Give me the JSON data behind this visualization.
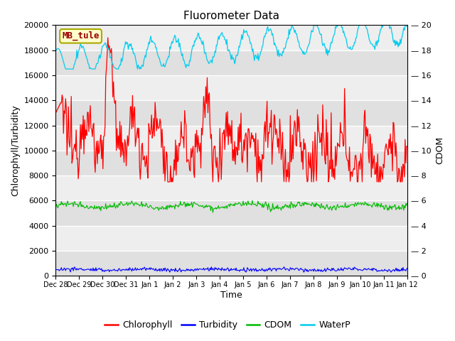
{
  "title": "Fluorometer Data",
  "xlabel": "Time",
  "ylabel_left": "Chlorophyll/Turbidity",
  "ylabel_right": "CDOM",
  "annotation": "MB_tule",
  "ylim_left": [
    0,
    20000
  ],
  "ylim_right": [
    0,
    20
  ],
  "xtick_labels": [
    "Dec 28",
    "Dec 29",
    "Dec 30",
    "Dec 31",
    "Jan 1",
    "Jan 2",
    "Jan 3",
    "Jan 4",
    "Jan 5",
    "Jan 6",
    "Jan 7",
    "Jan 8",
    "Jan 9",
    "Jan 10",
    "Jan 11",
    "Jan 12"
  ],
  "yticks_left": [
    0,
    2000,
    4000,
    6000,
    8000,
    10000,
    12000,
    14000,
    16000,
    18000,
    20000
  ],
  "yticks_right": [
    0,
    2,
    4,
    6,
    8,
    10,
    12,
    14,
    16,
    18,
    20
  ],
  "colors": {
    "chlorophyll": "#ff0000",
    "turbidity": "#0000ff",
    "cdom": "#00bb00",
    "waterp": "#00ccee",
    "plot_bg": "#e8e8e8",
    "band_light": "#eeeeee",
    "band_dark": "#e0e0e0",
    "annotation_bg": "#ffffcc",
    "annotation_border": "#aaaa00",
    "annotation_text": "#990000"
  },
  "legend_labels": [
    "Chlorophyll",
    "Turbidity",
    "CDOM",
    "WaterP"
  ],
  "n_points": 500,
  "seed": 12345
}
